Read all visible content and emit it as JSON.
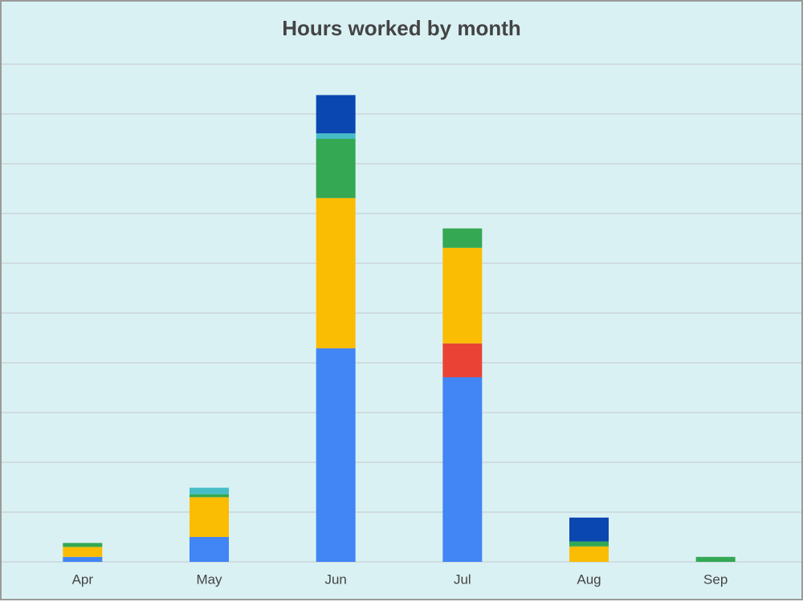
{
  "chart_data": {
    "type": "stacked_bar",
    "title": "Hours worked by month",
    "categories": [
      "Apr",
      "May",
      "Jun",
      "Jul",
      "Aug",
      "Sep"
    ],
    "series": [
      {
        "color": "#4285f4",
        "values": [
          0.1,
          0.5,
          4.29,
          3.71,
          0,
          0
        ]
      },
      {
        "color": "#ea4335",
        "values": [
          0,
          0,
          0,
          0.68,
          0,
          0
        ]
      },
      {
        "color": "#fbbc04",
        "values": [
          0.2,
          0.8,
          3.02,
          1.92,
          0.31,
          0
        ]
      },
      {
        "color": "#34a853",
        "values": [
          0.08,
          0.06,
          1.19,
          0.39,
          0.1,
          0.1
        ]
      },
      {
        "color": "#46bdc6",
        "values": [
          0,
          0.13,
          0.11,
          0,
          0,
          0
        ]
      },
      {
        "color": "#0b47b0",
        "values": [
          0,
          0,
          0.77,
          0,
          0.48,
          0
        ]
      }
    ],
    "ylim": [
      0,
      10
    ],
    "yticks": [
      0,
      1,
      2,
      3,
      4,
      5,
      6,
      7,
      8,
      9,
      10
    ],
    "grid": true
  }
}
